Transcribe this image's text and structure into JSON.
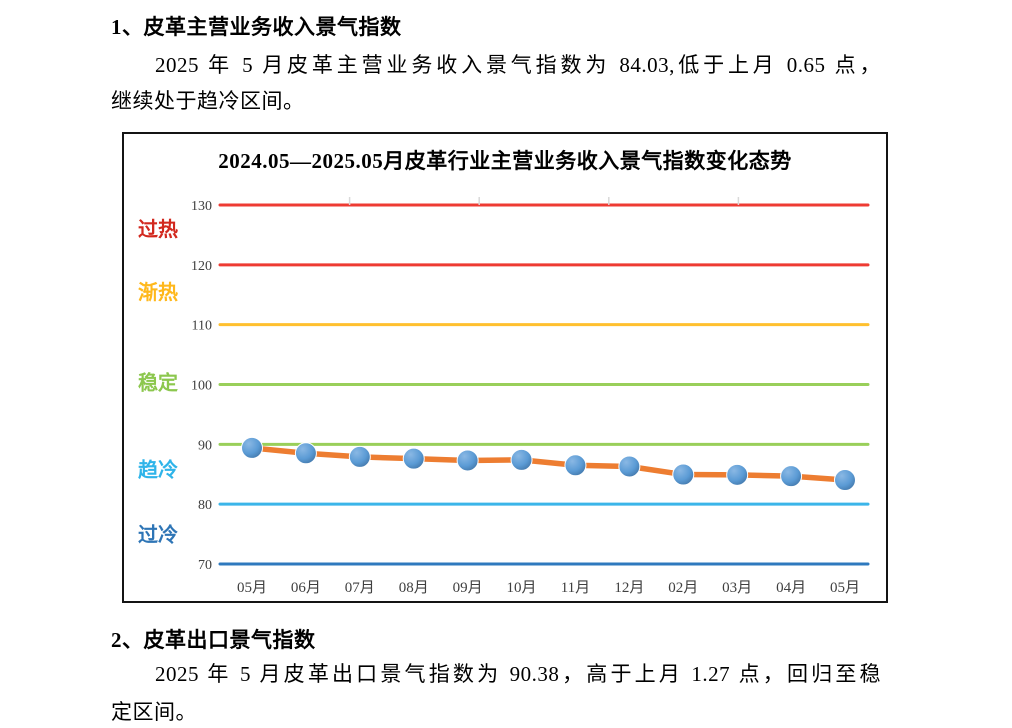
{
  "document": {
    "section1": {
      "heading": "1、皮革主营业务收入景气指数",
      "lines": [
        "2025 年 5 月皮革主营业务收入景气指数为 84.03,低于上月 0.65 点，",
        "继续处于趋冷区间。"
      ]
    },
    "section2": {
      "heading": "2、皮革出口景气指数",
      "lines": [
        "2025 年 5 月皮革出口景气指数为 90.38，高于上月 1.27 点，回归至稳",
        "定区间。"
      ]
    }
  },
  "chart_data": {
    "type": "line",
    "title": "2024.05—2025.05月皮革行业主营业务收入景气指数变化态势",
    "categories": [
      "05月",
      "06月",
      "07月",
      "08月",
      "09月",
      "10月",
      "11月",
      "12月",
      "02月",
      "03月",
      "04月",
      "05月"
    ],
    "values": [
      89.4,
      88.5,
      87.9,
      87.6,
      87.3,
      87.4,
      86.5,
      86.3,
      84.95,
      84.9,
      84.68,
      84.03
    ],
    "ylim": [
      70,
      130
    ],
    "yticks": [
      130,
      120,
      110,
      100,
      90,
      80,
      70
    ],
    "ytick_colors": [
      "#EE3B33",
      "#EE3B33",
      "#FFC02E",
      "#99CF5A",
      "#99CF5A",
      "#3BB5E9",
      "#2E79BE"
    ],
    "zones": [
      {
        "label": "过热",
        "center": 126.0,
        "color": "#D2281E"
      },
      {
        "label": "渐热",
        "center": 115.5,
        "color": "#FFB81C"
      },
      {
        "label": "稳定",
        "center": 100.3,
        "color": "#8CC74E"
      },
      {
        "label": "趋冷",
        "center": 85.8,
        "color": "#2FB4E9"
      },
      {
        "label": "过冷",
        "center": 74.9,
        "color": "#2E75B6"
      }
    ],
    "line_color": "#ED7D31",
    "marker_fill": "#5B9BD5",
    "tick_label_color": "#404040",
    "xlabel": "",
    "ylabel": "",
    "legend": "none",
    "grid": "horizontal"
  }
}
